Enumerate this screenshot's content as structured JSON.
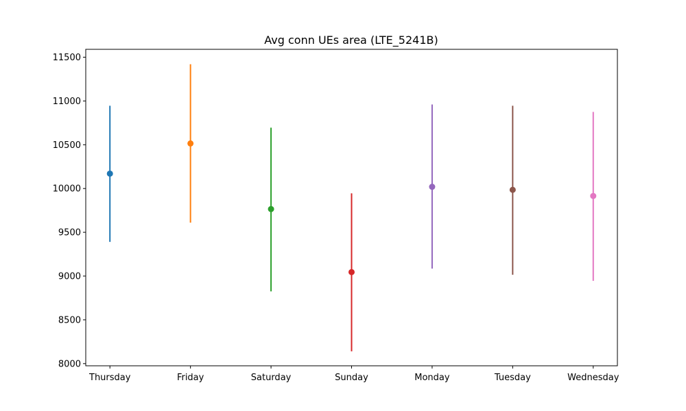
{
  "chart_data": {
    "type": "errorbar",
    "title": "Avg conn UEs area (LTE_5241B)",
    "xlabel": "",
    "ylabel": "",
    "categories": [
      "Thursday",
      "Friday",
      "Saturday",
      "Sunday",
      "Monday",
      "Tuesday",
      "Wednesday"
    ],
    "values": [
      10170,
      10515,
      9765,
      9045,
      10020,
      9985,
      9915
    ],
    "lower": [
      9390,
      9610,
      8825,
      8140,
      9085,
      9015,
      8945
    ],
    "upper": [
      10945,
      11420,
      10695,
      9945,
      10960,
      10945,
      10875
    ],
    "colors": [
      "#1f77b4",
      "#ff7f0e",
      "#2ca02c",
      "#d62728",
      "#9467bd",
      "#8c564b",
      "#e377c2"
    ],
    "ylim": [
      7975,
      11590
    ],
    "yticks": [
      8000,
      8500,
      9000,
      9500,
      10000,
      10500,
      11000,
      11500
    ],
    "grid": false,
    "legend": "none"
  }
}
